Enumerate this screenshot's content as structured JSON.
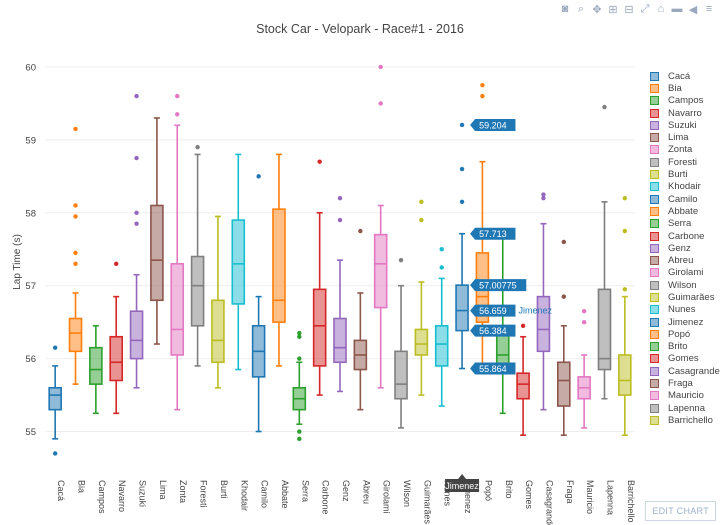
{
  "toolbar": {
    "icons": [
      "camera-icon",
      "zoom-icon",
      "pan-icon",
      "zoom-in-icon",
      "zoom-out-icon",
      "autoscale-icon",
      "home-icon",
      "spike-lines-icon",
      "hover-closest-icon",
      "hover-compare-icon"
    ]
  },
  "edit_chart_label": "EDIT CHART",
  "tooltip_name": "Jimenez",
  "chart_data": {
    "type": "box",
    "title": "Stock Car - Velopark - Race#1 - 2016",
    "ylabel": "Lap Time (s)",
    "xlabel": "",
    "ylim": [
      54.5,
      60.15
    ],
    "yticks": [
      55,
      56,
      57,
      58,
      59,
      60
    ],
    "grid": true,
    "legend_placement": "right",
    "hover_labels": [
      "59.204",
      "57.713",
      "57.00775",
      "56.659",
      "56.384",
      "55.864"
    ],
    "series": [
      {
        "name": "Cacá",
        "color": "#1f77b4",
        "q1": 55.3,
        "med": 55.5,
        "q3": 55.6,
        "lo": 54.9,
        "hi": 55.9,
        "outliers": [
          54.7,
          56.15
        ]
      },
      {
        "name": "Bia",
        "color": "#ff7f0e",
        "q1": 56.1,
        "med": 56.35,
        "q3": 56.55,
        "lo": 55.65,
        "hi": 56.9,
        "outliers": [
          57.3,
          57.45,
          57.95,
          58.1,
          59.15
        ]
      },
      {
        "name": "Campos",
        "color": "#2ca02c",
        "q1": 55.65,
        "med": 55.85,
        "q3": 56.15,
        "lo": 55.25,
        "hi": 56.45,
        "outliers": []
      },
      {
        "name": "Navarro",
        "color": "#d62728",
        "q1": 55.7,
        "med": 55.95,
        "q3": 56.3,
        "lo": 55.25,
        "hi": 56.85,
        "outliers": [
          57.3
        ]
      },
      {
        "name": "Suzuki",
        "color": "#9467bd",
        "q1": 56.0,
        "med": 56.25,
        "q3": 56.65,
        "lo": 55.6,
        "hi": 57.15,
        "outliers": [
          57.85,
          58.0,
          58.75,
          59.6
        ]
      },
      {
        "name": "Lima",
        "color": "#8c564b",
        "q1": 56.8,
        "med": 57.35,
        "q3": 58.1,
        "lo": 56.2,
        "hi": 59.3,
        "outliers": []
      },
      {
        "name": "Zonta",
        "color": "#e377c2",
        "q1": 56.05,
        "med": 56.4,
        "q3": 57.3,
        "lo": 55.3,
        "hi": 59.2,
        "outliers": [
          59.35,
          59.6
        ]
      },
      {
        "name": "Foresti",
        "color": "#7f7f7f",
        "q1": 56.45,
        "med": 57.0,
        "q3": 57.4,
        "lo": 55.9,
        "hi": 58.8,
        "outliers": [
          58.9
        ]
      },
      {
        "name": "Burti",
        "color": "#bcbd22",
        "q1": 55.95,
        "med": 56.25,
        "q3": 56.8,
        "lo": 55.6,
        "hi": 57.95,
        "outliers": []
      },
      {
        "name": "Khodair",
        "color": "#17becf",
        "q1": 56.75,
        "med": 57.3,
        "q3": 57.9,
        "lo": 55.85,
        "hi": 58.8,
        "outliers": []
      },
      {
        "name": "Camilo",
        "color": "#1f77b4",
        "q1": 55.75,
        "med": 56.1,
        "q3": 56.45,
        "lo": 55.0,
        "hi": 56.85,
        "outliers": [
          58.5
        ]
      },
      {
        "name": "Abbate",
        "color": "#ff7f0e",
        "q1": 56.5,
        "med": 56.8,
        "q3": 58.05,
        "lo": 55.9,
        "hi": 58.8,
        "outliers": []
      },
      {
        "name": "Serra",
        "color": "#2ca02c",
        "q1": 55.3,
        "med": 55.45,
        "q3": 55.6,
        "lo": 55.1,
        "hi": 55.95,
        "outliers": [
          54.9,
          55.0,
          56.0,
          56.3,
          56.35
        ]
      },
      {
        "name": "Carbone",
        "color": "#d62728",
        "q1": 55.9,
        "med": 56.45,
        "q3": 56.95,
        "lo": 55.5,
        "hi": 58.0,
        "outliers": [
          58.7
        ]
      },
      {
        "name": "Genz",
        "color": "#9467bd",
        "q1": 55.95,
        "med": 56.15,
        "q3": 56.55,
        "lo": 55.55,
        "hi": 57.35,
        "outliers": [
          57.9,
          58.2
        ]
      },
      {
        "name": "Abreu",
        "color": "#8c564b",
        "q1": 55.85,
        "med": 56.05,
        "q3": 56.25,
        "lo": 55.3,
        "hi": 56.9,
        "outliers": [
          57.75
        ]
      },
      {
        "name": "Girolami",
        "color": "#e377c2",
        "q1": 56.7,
        "med": 57.3,
        "q3": 57.7,
        "lo": 55.6,
        "hi": 58.1,
        "outliers": [
          59.5,
          60.0
        ]
      },
      {
        "name": "Wilson",
        "color": "#7f7f7f",
        "q1": 55.45,
        "med": 55.65,
        "q3": 56.1,
        "lo": 55.05,
        "hi": 57.0,
        "outliers": [
          57.35
        ]
      },
      {
        "name": "Guimarães",
        "color": "#bcbd22",
        "q1": 56.05,
        "med": 56.2,
        "q3": 56.4,
        "lo": 55.5,
        "hi": 57.05,
        "outliers": [
          57.9,
          58.15
        ]
      },
      {
        "name": "Nunes",
        "color": "#17becf",
        "q1": 55.9,
        "med": 56.2,
        "q3": 56.45,
        "lo": 55.35,
        "hi": 57.1,
        "outliers": [
          57.25,
          57.5
        ]
      },
      {
        "name": "Jimenez",
        "color": "#1f77b4",
        "q1": 56.384,
        "med": 56.659,
        "q3": 57.00775,
        "lo": 55.864,
        "hi": 57.713,
        "outliers": [
          58.15,
          58.6,
          59.204
        ]
      },
      {
        "name": "Popó",
        "color": "#ff7f0e",
        "q1": 56.5,
        "med": 56.85,
        "q3": 57.45,
        "lo": 55.9,
        "hi": 58.7,
        "outliers": [
          59.6,
          59.75
        ]
      },
      {
        "name": "Brito",
        "color": "#2ca02c",
        "q1": 55.85,
        "med": 56.05,
        "q3": 56.35,
        "lo": 55.25,
        "hi": 57.65,
        "outliers": [
          57.75
        ]
      },
      {
        "name": "Gomes",
        "color": "#d62728",
        "q1": 55.45,
        "med": 55.65,
        "q3": 55.8,
        "lo": 54.95,
        "hi": 56.3,
        "outliers": [
          56.45
        ]
      },
      {
        "name": "Casagrande",
        "color": "#9467bd",
        "q1": 56.1,
        "med": 56.4,
        "q3": 56.85,
        "lo": 55.3,
        "hi": 57.85,
        "outliers": [
          58.2,
          58.25
        ]
      },
      {
        "name": "Fraga",
        "color": "#8c564b",
        "q1": 55.35,
        "med": 55.7,
        "q3": 55.95,
        "lo": 54.95,
        "hi": 56.45,
        "outliers": [
          56.85,
          57.6
        ]
      },
      {
        "name": "Mauricio",
        "color": "#e377c2",
        "q1": 55.45,
        "med": 55.6,
        "q3": 55.75,
        "lo": 55.05,
        "hi": 56.05,
        "outliers": [
          56.5,
          56.65
        ]
      },
      {
        "name": "Lapenna",
        "color": "#7f7f7f",
        "q1": 55.85,
        "med": 56.0,
        "q3": 56.95,
        "lo": 55.45,
        "hi": 58.15,
        "outliers": [
          59.45
        ]
      },
      {
        "name": "Barrichello",
        "color": "#bcbd22",
        "q1": 55.5,
        "med": 55.7,
        "q3": 56.05,
        "lo": 54.95,
        "hi": 56.85,
        "outliers": [
          56.95,
          57.75,
          58.2
        ]
      }
    ]
  }
}
